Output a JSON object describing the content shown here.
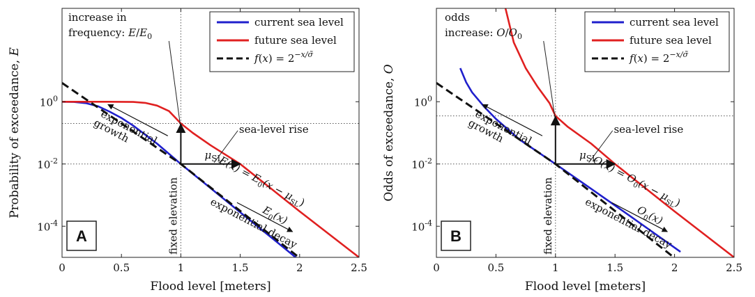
{
  "chart_data": [
    {
      "type": "line",
      "panel_label": "A",
      "xlabel": "Flood level [meters]",
      "ylabel": "Probability of exceedance, E",
      "ylabel_var": "E",
      "x_ticks": [
        "0",
        "0.5",
        "1",
        "1.5",
        "2",
        "2.5"
      ],
      "xlim": [
        0,
        2.5
      ],
      "ylim": [
        1e-05,
        1000
      ],
      "yscale": "log",
      "y_tick_values": [
        1,
        0.01,
        0.0001
      ],
      "y_ticks": [
        {
          "base": "10",
          "exp": "0"
        },
        {
          "base": "10",
          "exp": "-2"
        },
        {
          "base": "10",
          "exp": "-4"
        }
      ],
      "legend": {
        "placement": "top-right",
        "entries": [
          "current sea level",
          "future sea level",
          "f(x) = 2^{-x/σ̃}"
        ]
      },
      "series": [
        {
          "name": "current sea level",
          "color": "#1f1fcc",
          "style": "solid",
          "x": [
            0,
            0.1,
            0.2,
            0.3,
            0.4,
            0.5,
            0.6,
            0.8,
            1.0,
            1.2,
            1.5,
            1.8,
            2.05
          ],
          "y": [
            1,
            0.98,
            0.9,
            0.72,
            0.48,
            0.3,
            0.17,
            0.045,
            0.01,
            0.0024,
            0.00028,
            3.3e-05,
            5.5e-06
          ]
        },
        {
          "name": "future sea level",
          "color": "#e02020",
          "style": "solid",
          "x": [
            0,
            0.2,
            0.4,
            0.6,
            0.7,
            0.8,
            0.9,
            1.0,
            1.1,
            1.25,
            1.5,
            2.0,
            2.5
          ],
          "y": [
            1,
            1,
            1,
            0.98,
            0.92,
            0.75,
            0.5,
            0.2,
            0.1,
            0.04,
            0.01,
            0.0003,
            1e-05
          ]
        },
        {
          "name": "f(x) = 2^{-x/σ̃}",
          "color": "#111111",
          "style": "dashed",
          "x": [
            0,
            1.0,
            2.1
          ],
          "y": [
            4.0,
            0.01,
            4.8e-06
          ]
        }
      ],
      "annotations": {
        "increase_line1": "increase in",
        "increase_line2": "frequency:",
        "ratio_num": "E",
        "ratio_den": "E",
        "ratio_sub": "0",
        "growth_1": "exponential",
        "growth_2": "growth",
        "slr": "sea-level rise",
        "mu": "μ",
        "mu_sub": "SL",
        "decay": "exponential decay",
        "fixed_elev": "fixed elevation",
        "curve_label_main": "E(x) = E",
        "curve_label_sub": "0",
        "curve_label_tail": "(x − μ",
        "curve_label_tail_sub": "SL",
        "curve_label_close": ")",
        "current_label": "E",
        "current_label_sub": "0",
        "current_label_tail": "(x)"
      }
    },
    {
      "type": "line",
      "panel_label": "B",
      "xlabel": "Flood level [meters]",
      "ylabel": "Odds of exceedance, O",
      "ylabel_var": "O",
      "x_ticks": [
        "0",
        "0.5",
        "1",
        "1.5",
        "2",
        "2.5"
      ],
      "xlim": [
        0,
        2.5
      ],
      "ylim": [
        1e-05,
        1000
      ],
      "yscale": "log",
      "y_tick_values": [
        1,
        0.01,
        0.0001
      ],
      "y_ticks": [
        {
          "base": "10",
          "exp": "0"
        },
        {
          "base": "10",
          "exp": "-2"
        },
        {
          "base": "10",
          "exp": "-4"
        }
      ],
      "legend": {
        "placement": "top-right",
        "entries": [
          "current sea level",
          "future sea level",
          "f(x) = 2^{-x/σ̃}"
        ]
      },
      "series": [
        {
          "name": "current sea level",
          "color": "#1f1fcc",
          "style": "solid",
          "x": [
            0.2,
            0.25,
            0.3,
            0.4,
            0.5,
            0.7,
            1.0,
            1.3,
            1.6,
            2.05
          ],
          "y": [
            12,
            4.2,
            2.0,
            0.7,
            0.28,
            0.06,
            0.01,
            0.0016,
            0.00025,
            1.5e-05
          ]
        },
        {
          "name": "future sea level",
          "color": "#e02020",
          "style": "solid",
          "x": [
            0.58,
            0.65,
            0.75,
            0.85,
            0.95,
            1.0,
            1.1,
            1.3,
            1.5,
            2.0,
            2.5
          ],
          "y": [
            1000,
            80,
            12,
            3.0,
            0.9,
            0.35,
            0.16,
            0.045,
            0.01,
            0.0003,
            1e-05
          ]
        },
        {
          "name": "f(x) = 2^{-x/σ̃}",
          "color": "#111111",
          "style": "dashed",
          "x": [
            0,
            1.0,
            2.1
          ],
          "y": [
            4.0,
            0.01,
            4.8e-06
          ]
        }
      ],
      "annotations": {
        "increase_line1": "odds",
        "increase_line2": "increase:",
        "ratio_num": "O",
        "ratio_den": "O",
        "ratio_sub": "0",
        "growth_1": "exponential",
        "growth_2": "growth",
        "slr": "sea-level rise",
        "mu": "μ",
        "mu_sub": "SL",
        "decay": "exponential decay",
        "fixed_elev": "fixed elevation",
        "curve_label_main": "O(x) = O",
        "curve_label_sub": "0",
        "curve_label_tail": "(x − μ",
        "curve_label_tail_sub": "SL",
        "curve_label_close": ")",
        "current_label": "O",
        "current_label_sub": "0",
        "current_label_tail": "(x)"
      }
    }
  ]
}
